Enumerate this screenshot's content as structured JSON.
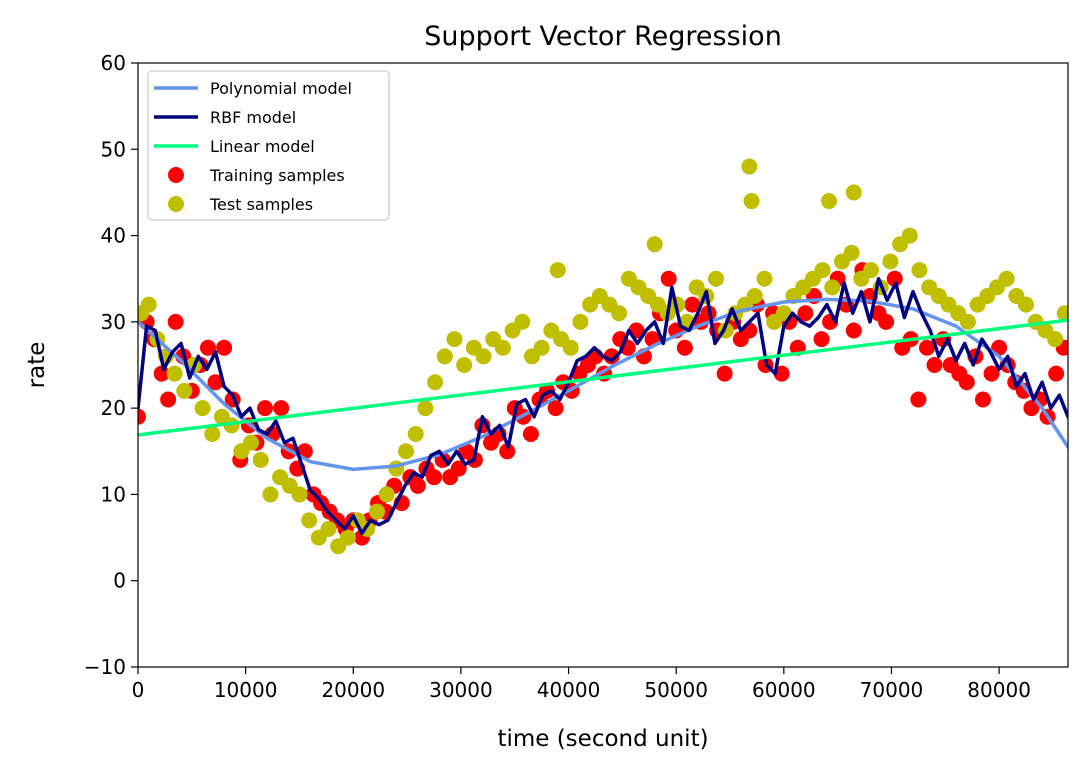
{
  "chart_data": {
    "type": "scatter",
    "title": "Support Vector Regression",
    "xlabel": "time (second unit)",
    "ylabel": "rate",
    "xlim": [
      0,
      86400
    ],
    "ylim": [
      -10,
      60
    ],
    "xticks": [
      0,
      10000,
      20000,
      30000,
      40000,
      50000,
      60000,
      70000,
      80000
    ],
    "yticks": [
      -10,
      0,
      10,
      20,
      30,
      40,
      50,
      60
    ],
    "xtick_labels": [
      "0",
      "10000",
      "20000",
      "30000",
      "40000",
      "50000",
      "60000",
      "70000",
      "80000"
    ],
    "ytick_labels": [
      "−10",
      "0",
      "10",
      "20",
      "30",
      "40",
      "50",
      "60"
    ],
    "grid": false,
    "legend_position": "top-left",
    "legend": [
      {
        "label": "Polynomial model",
        "kind": "line",
        "color": "#6495ed"
      },
      {
        "label": "RBF model",
        "kind": "line",
        "color": "#000080"
      },
      {
        "label": "Linear model",
        "kind": "line",
        "color": "#00ff7f"
      },
      {
        "label": "Training samples",
        "kind": "marker",
        "color": "#ff0000"
      },
      {
        "label": "Test samples",
        "kind": "marker",
        "color": "#bfbf00"
      }
    ],
    "series": [
      {
        "name": "Polynomial model",
        "kind": "line",
        "color": "#6495ed",
        "x": [
          0,
          4000,
          8000,
          12000,
          16000,
          20000,
          24000,
          28000,
          32000,
          36000,
          40000,
          44000,
          48000,
          52000,
          56000,
          60000,
          64000,
          68000,
          72000,
          76000,
          80000,
          84000,
          86400
        ],
        "y": [
          30,
          25.5,
          20.5,
          16.5,
          13.8,
          12.9,
          13.3,
          14.6,
          16.7,
          19.3,
          22,
          24.8,
          27.3,
          29.5,
          31.3,
          32.3,
          32.6,
          32.4,
          31.5,
          29.5,
          26,
          20,
          15.5
        ]
      },
      {
        "name": "RBF model",
        "kind": "line",
        "color": "#000080",
        "x": [
          0,
          800,
          1600,
          2400,
          3200,
          4000,
          4800,
          5600,
          6400,
          7200,
          8000,
          8800,
          9600,
          10400,
          11200,
          12000,
          12800,
          13600,
          14400,
          15200,
          16000,
          16800,
          17600,
          18400,
          19200,
          20000,
          20800,
          21600,
          22400,
          23200,
          24000,
          24800,
          25600,
          26400,
          27200,
          28000,
          28800,
          29600,
          30400,
          31200,
          32000,
          32800,
          33600,
          34400,
          35200,
          36000,
          36800,
          37600,
          38400,
          39200,
          40000,
          40800,
          41600,
          42400,
          43200,
          44000,
          44800,
          45600,
          46400,
          47200,
          48000,
          48800,
          49600,
          50400,
          51200,
          52000,
          52800,
          53600,
          54400,
          55200,
          56000,
          56800,
          57600,
          58400,
          59200,
          60000,
          60800,
          61600,
          62400,
          63200,
          64000,
          64800,
          65600,
          66400,
          67200,
          68000,
          68800,
          69600,
          70400,
          71200,
          72000,
          72800,
          73600,
          74400,
          75200,
          76000,
          76800,
          77600,
          78400,
          79200,
          80000,
          80800,
          81600,
          82400,
          83200,
          84000,
          84800,
          85600,
          86400
        ],
        "y": [
          20,
          29.5,
          29,
          24.5,
          26.5,
          27.5,
          23.5,
          26,
          24.5,
          26.5,
          22.5,
          21.5,
          19,
          20,
          17.5,
          17,
          18.5,
          16,
          16.5,
          13.5,
          10.5,
          9.5,
          8,
          7,
          6,
          7.5,
          5.5,
          7,
          6.5,
          7,
          9,
          11,
          12.5,
          12,
          14.5,
          15,
          13.5,
          15,
          13.5,
          14,
          19,
          17,
          18,
          15.5,
          20.5,
          21,
          19,
          21.5,
          22,
          21,
          23,
          25.5,
          26,
          27,
          26,
          25.5,
          26.5,
          29,
          27.5,
          29,
          30,
          27.5,
          34,
          29.5,
          29,
          31,
          33.5,
          27.5,
          29,
          31.5,
          29,
          30,
          31,
          25,
          24,
          29.5,
          31,
          30,
          29.5,
          30.5,
          32,
          30,
          34.5,
          31,
          33.5,
          30,
          35,
          32.5,
          34.5,
          30.5,
          33.5,
          31,
          29,
          26,
          28,
          25.5,
          27.5,
          25,
          28,
          26.5,
          24.5,
          26,
          22.5,
          24,
          21,
          23,
          20,
          21.5,
          19
        ]
      },
      {
        "name": "Linear model",
        "kind": "line",
        "color": "#00ff7f",
        "x": [
          0,
          86400
        ],
        "y": [
          16.9,
          30.2
        ]
      },
      {
        "name": "Training samples",
        "kind": "scatter",
        "color": "#ff0000",
        "x": [
          0,
          800,
          1500,
          2200,
          2800,
          3500,
          4200,
          5000,
          5800,
          6500,
          7200,
          8000,
          8800,
          9500,
          10300,
          11000,
          11800,
          12500,
          13300,
          14000,
          14800,
          15500,
          16300,
          17000,
          17800,
          18500,
          19300,
          20000,
          20800,
          21500,
          22300,
          23000,
          23800,
          24500,
          25300,
          26000,
          26800,
          27500,
          28300,
          29000,
          29800,
          30500,
          31300,
          32000,
          32800,
          33500,
          34300,
          35000,
          35800,
          36500,
          37300,
          38000,
          38800,
          39500,
          40300,
          41000,
          41800,
          42500,
          43300,
          44000,
          44800,
          45500,
          46300,
          47000,
          47800,
          48500,
          49300,
          50000,
          50800,
          51500,
          52300,
          53000,
          53800,
          54500,
          55300,
          56000,
          56800,
          57500,
          58300,
          59000,
          59800,
          60500,
          61300,
          62000,
          62800,
          63500,
          64300,
          65000,
          65800,
          66500,
          67300,
          68000,
          68800,
          69500,
          70300,
          71000,
          71800,
          72500,
          73300,
          74000,
          74800,
          75500,
          76300,
          77000,
          77800,
          78500,
          79300,
          80000,
          80800,
          81500,
          82300,
          83000,
          83800,
          84500,
          85300,
          86000
        ],
        "y": [
          19,
          30,
          28,
          24,
          21,
          30,
          26,
          22,
          25,
          27,
          23,
          27,
          21,
          14,
          18,
          16,
          20,
          17,
          20,
          15,
          13,
          15,
          10,
          9,
          8,
          7,
          6,
          7,
          5,
          7,
          9,
          8,
          11,
          9,
          12,
          11,
          13,
          12,
          14,
          12,
          13,
          15,
          14,
          18,
          16,
          17,
          15,
          20,
          19,
          17,
          21,
          22,
          20,
          23,
          22,
          24,
          25,
          26,
          24,
          26,
          28,
          27,
          29,
          26,
          28,
          31,
          35,
          29,
          27,
          32,
          30,
          31,
          29,
          24,
          30,
          28,
          29,
          32,
          25,
          31,
          24,
          30,
          27,
          31,
          33,
          28,
          30,
          35,
          32,
          29,
          36,
          33,
          31,
          30,
          35,
          27,
          28,
          21,
          27,
          25,
          28,
          25,
          24,
          23,
          26,
          21,
          24,
          27,
          25,
          23,
          22,
          20,
          21,
          19,
          24,
          27
        ]
      },
      {
        "name": "Test samples",
        "kind": "scatter",
        "color": "#bfbf00",
        "x": [
          300,
          1000,
          1800,
          2600,
          3400,
          4300,
          5200,
          6000,
          6900,
          7800,
          8700,
          9600,
          10500,
          11400,
          12300,
          13200,
          14100,
          15000,
          15900,
          16800,
          17700,
          18600,
          19500,
          20400,
          21300,
          22200,
          23100,
          24000,
          24900,
          25800,
          26700,
          27600,
          28500,
          29400,
          30300,
          31200,
          32100,
          33000,
          33900,
          34800,
          35700,
          36600,
          37500,
          38400,
          39300,
          40200,
          41100,
          42000,
          42900,
          43800,
          44700,
          45600,
          46500,
          47400,
          48300,
          49200,
          50100,
          51000,
          51900,
          52800,
          53700,
          54600,
          55500,
          56400,
          57300,
          58200,
          59100,
          60000,
          60900,
          61800,
          62700,
          63600,
          64500,
          65400,
          66300,
          67200,
          68100,
          69000,
          69900,
          70800,
          71700,
          72600,
          73500,
          74400,
          75300,
          76200,
          77100,
          78000,
          78900,
          79800,
          80700,
          81600,
          82500,
          83400,
          84300,
          85200,
          86100,
          56800,
          57000,
          66500,
          64200,
          39000,
          48000
        ],
        "y": [
          31,
          32,
          28,
          26,
          24,
          22,
          25,
          20,
          17,
          19,
          18,
          15,
          16,
          14,
          10,
          12,
          11,
          10,
          7,
          5,
          6,
          4,
          5,
          7,
          6,
          8,
          10,
          13,
          15,
          17,
          20,
          23,
          26,
          28,
          25,
          27,
          26,
          28,
          27,
          29,
          30,
          26,
          27,
          29,
          28,
          27,
          30,
          32,
          33,
          32,
          31,
          35,
          34,
          33,
          32,
          31,
          32,
          30,
          34,
          33,
          35,
          29,
          31,
          32,
          33,
          35,
          30,
          31,
          33,
          34,
          35,
          36,
          34,
          37,
          38,
          35,
          36,
          34,
          37,
          39,
          40,
          36,
          34,
          33,
          32,
          31,
          30,
          32,
          33,
          34,
          35,
          33,
          32,
          30,
          29,
          28,
          31,
          48,
          44,
          45,
          44,
          36,
          39
        ]
      }
    ]
  }
}
